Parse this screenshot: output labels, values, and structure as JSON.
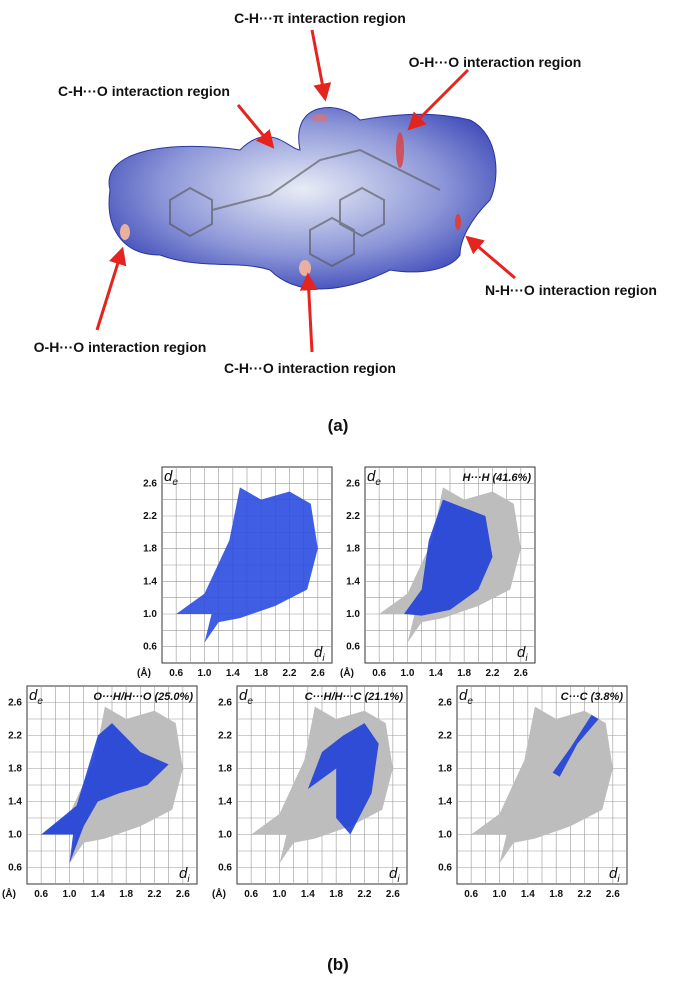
{
  "panel_a": {
    "labels": [
      "C-H···π interaction region",
      "O-H···O interaction region",
      "C-H···O interaction region",
      "N-H···O interaction region",
      "O-H···O interaction region",
      "C-H···O interaction region"
    ],
    "caption": "(a)"
  },
  "panel_b": {
    "caption": "(b)",
    "plots": [
      {
        "ylabel": [
          "d",
          "e"
        ],
        "xlabel": [
          "d",
          "i"
        ],
        "unit": "(Å)",
        "yticks": [
          "2.6",
          "2.2",
          "1.8",
          "1.4",
          "1.0",
          "0.6"
        ],
        "xticks": [
          "0.6",
          "1.0",
          "1.4",
          "1.8",
          "2.2",
          "2.6"
        ]
      },
      {
        "title": "H···H (41.6%)",
        "ylabel": [
          "d",
          "e"
        ],
        "xlabel": [
          "d",
          "i"
        ],
        "unit": "(Å)",
        "yticks": [
          "2.6",
          "2.2",
          "1.8",
          "1.4",
          "1.0",
          "0.6"
        ],
        "xticks": [
          "0.6",
          "1.0",
          "1.4",
          "1.8",
          "2.2",
          "2.6"
        ]
      },
      {
        "title": "O···H/H···O (25.0%)",
        "ylabel": [
          "d",
          "e"
        ],
        "xlabel": [
          "d",
          "i"
        ],
        "unit": "(Å)",
        "yticks": [
          "2.6",
          "2.2",
          "1.8",
          "1.4",
          "1.0",
          "0.6"
        ],
        "xticks": [
          "0.6",
          "1.0",
          "1.4",
          "1.8",
          "2.2",
          "2.6"
        ]
      },
      {
        "title": "C···H/H···C (21.1%)",
        "ylabel": [
          "d",
          "e"
        ],
        "xlabel": [
          "d",
          "i"
        ],
        "unit": "(Å)",
        "yticks": [
          "2.6",
          "2.2",
          "1.8",
          "1.4",
          "1.0",
          "0.6"
        ],
        "xticks": [
          "0.6",
          "1.0",
          "1.4",
          "1.8",
          "2.2",
          "2.6"
        ]
      },
      {
        "title": "C···C (3.8%)",
        "ylabel": [
          "d",
          "e"
        ],
        "xlabel": [
          "d",
          "i"
        ],
        "yticks": [
          "2.6",
          "2.2",
          "1.8",
          "1.4",
          "1.0",
          "0.6"
        ],
        "xticks": [
          "0.6",
          "1.0",
          "1.4",
          "1.8",
          "2.2",
          "2.6"
        ]
      }
    ]
  }
}
